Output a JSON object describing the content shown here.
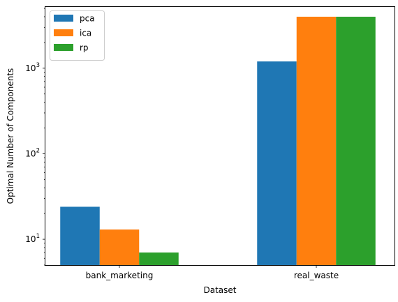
{
  "chart_data": {
    "type": "bar",
    "title": "",
    "xlabel": "Dataset",
    "ylabel": "Optimal Number of Components",
    "yscale": "log",
    "ylim": [
      5,
      5200
    ],
    "categories": [
      "bank_marketing",
      "real_waste"
    ],
    "series": [
      {
        "name": "pca",
        "color": "#1f77b4",
        "values": [
          24,
          1200
        ]
      },
      {
        "name": "ica",
        "color": "#ff7f0e",
        "values": [
          13,
          4000
        ]
      },
      {
        "name": "rp",
        "color": "#2ca02c",
        "values": [
          7,
          4000
        ]
      }
    ],
    "yticks": [
      {
        "value": 10,
        "base": "10",
        "exp": "1"
      },
      {
        "value": 100,
        "base": "10",
        "exp": "2"
      },
      {
        "value": 1000,
        "base": "10",
        "exp": "3"
      }
    ],
    "grid": false,
    "legend_position": "top-left"
  }
}
